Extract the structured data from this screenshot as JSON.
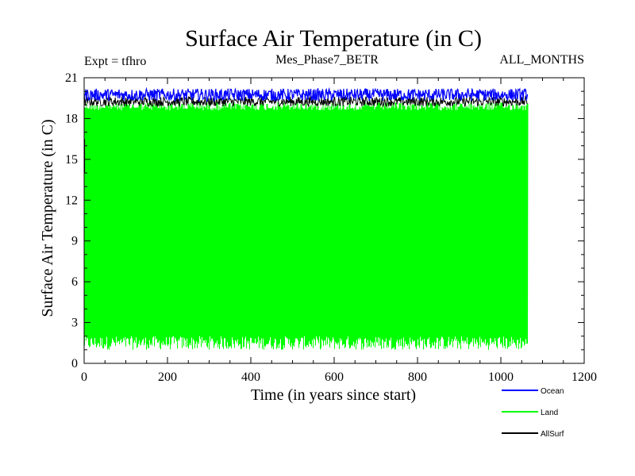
{
  "chart_data": {
    "type": "line",
    "title": "Surface Air Temperature (in C)",
    "subtitle_left": "Expt = tfhro",
    "subtitle_center": "Mes_Phase7_BETR",
    "subtitle_right": "ALL_MONTHS",
    "xlabel": "Time (in years since start)",
    "ylabel": "Surface Air Temperature (in C)",
    "xlim": [
      0,
      1200
    ],
    "ylim": [
      0,
      21
    ],
    "xticks": [
      0,
      200,
      400,
      600,
      800,
      1000,
      1200
    ],
    "yticks": [
      0,
      3,
      6,
      9,
      12,
      15,
      18,
      21
    ],
    "data_x_end": 1065,
    "series": [
      {
        "name": "Ocean",
        "color": "#0000ff",
        "min": 19.3,
        "max": 20.2,
        "mean": 19.8
      },
      {
        "name": "Land",
        "color": "#00ff00",
        "min": 1.0,
        "max": 19.2,
        "mean": 10.0
      },
      {
        "name": "AllSurf",
        "color": "#000000",
        "min": 18.9,
        "max": 19.6,
        "mean": 19.3
      }
    ]
  }
}
